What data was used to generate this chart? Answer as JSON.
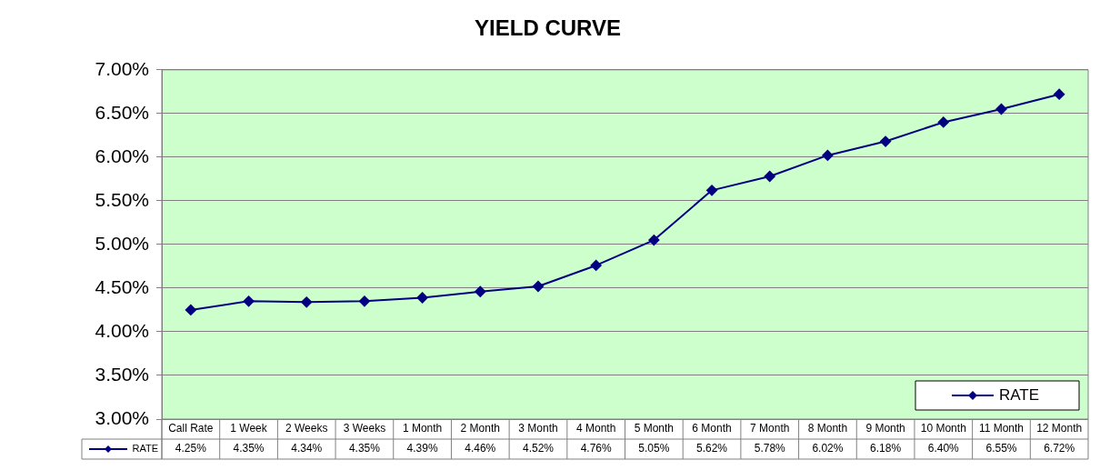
{
  "chart_data": {
    "type": "line",
    "title": "YIELD CURVE",
    "categories": [
      "Call Rate",
      "1 Week",
      "2 Weeks",
      "3 Weeks",
      "1 Month",
      "2 Month",
      "3 Month",
      "4 Month",
      "5 Month",
      "6 Month",
      "7 Month",
      "8 Month",
      "9 Month",
      "10 Month",
      "11 Month",
      "12 Month"
    ],
    "series": [
      {
        "name": "RATE",
        "color": "#000080",
        "values": [
          4.25,
          4.35,
          4.34,
          4.35,
          4.39,
          4.46,
          4.52,
          4.76,
          5.05,
          5.62,
          5.78,
          6.02,
          6.18,
          6.4,
          6.55,
          6.72
        ],
        "value_labels": [
          "4.25%",
          "4.35%",
          "4.34%",
          "4.35%",
          "4.39%",
          "4.46%",
          "4.52%",
          "4.76%",
          "5.05%",
          "5.62%",
          "5.78%",
          "6.02%",
          "6.18%",
          "6.40%",
          "6.55%",
          "6.72%"
        ]
      }
    ],
    "ylim": [
      3,
      7
    ],
    "yticks": [
      {
        "value": 3,
        "label": "3.00%"
      },
      {
        "value": 3.5,
        "label": "3.50%"
      },
      {
        "value": 4,
        "label": "4.00%"
      },
      {
        "value": 4.5,
        "label": "4.50%"
      },
      {
        "value": 5,
        "label": "5.00%"
      },
      {
        "value": 5.5,
        "label": "5.50%"
      },
      {
        "value": 6,
        "label": "6.00%"
      },
      {
        "value": 6.5,
        "label": "6.50%"
      },
      {
        "value": 7,
        "label": "7.00%"
      }
    ],
    "grid": "y",
    "legend": "bottom right",
    "marker": "diamond",
    "line_style": "solid"
  }
}
